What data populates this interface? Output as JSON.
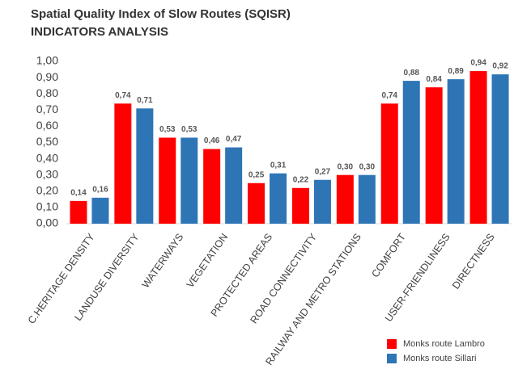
{
  "chart_data": {
    "type": "bar",
    "title": "Spatial Quality Index of Slow Routes (SQISR)",
    "subtitle": "INDICATORS ANALYSIS",
    "categories": [
      "C.HERITAGE DENSITY",
      "LANDUSE DIVERSITY",
      "WATERWAYS",
      "VEGETATION",
      "PROTECTED AREAS",
      "ROAD CONNECTIVITY",
      "RAILWAY AND METRO STATIONS",
      "COMFORT",
      "USER-FRIENDLINESS",
      "DIRECTNESS"
    ],
    "series": [
      {
        "name": "Monks route Lambro",
        "color": "#ff0000",
        "values": [
          0.14,
          0.74,
          0.53,
          0.46,
          0.25,
          0.22,
          0.3,
          0.74,
          0.84,
          0.94
        ],
        "value_labels": [
          "0,14",
          "0,74",
          "0,53",
          "0,46",
          "0,25",
          "0,22",
          "0,30",
          "0,74",
          "0,84",
          "0,94"
        ]
      },
      {
        "name": "Monks route Sillari",
        "color": "#2e75b6",
        "values": [
          0.16,
          0.71,
          0.53,
          0.47,
          0.31,
          0.27,
          0.3,
          0.88,
          0.89,
          0.92
        ],
        "value_labels": [
          "0,16",
          "0,71",
          "0,53",
          "0,47",
          "0,31",
          "0,27",
          "0,30",
          "0,88",
          "0,89",
          "0,92"
        ]
      }
    ],
    "ylim": [
      0,
      1
    ],
    "yticks": [
      {
        "value": 0,
        "label": "0,00"
      },
      {
        "value": 0.1,
        "label": "0,10"
      },
      {
        "value": 0.2,
        "label": "0,20"
      },
      {
        "value": 0.3,
        "label": "0,30"
      },
      {
        "value": 0.4,
        "label": "0,40"
      },
      {
        "value": 0.5,
        "label": "0,50"
      },
      {
        "value": 0.6,
        "label": "0,60"
      },
      {
        "value": 0.7,
        "label": "0,70"
      },
      {
        "value": 0.8,
        "label": "0,80"
      },
      {
        "value": 0.9,
        "label": "0,90"
      },
      {
        "value": 1,
        "label": "1,00"
      }
    ],
    "grid": false,
    "legend": "bottom-right"
  }
}
